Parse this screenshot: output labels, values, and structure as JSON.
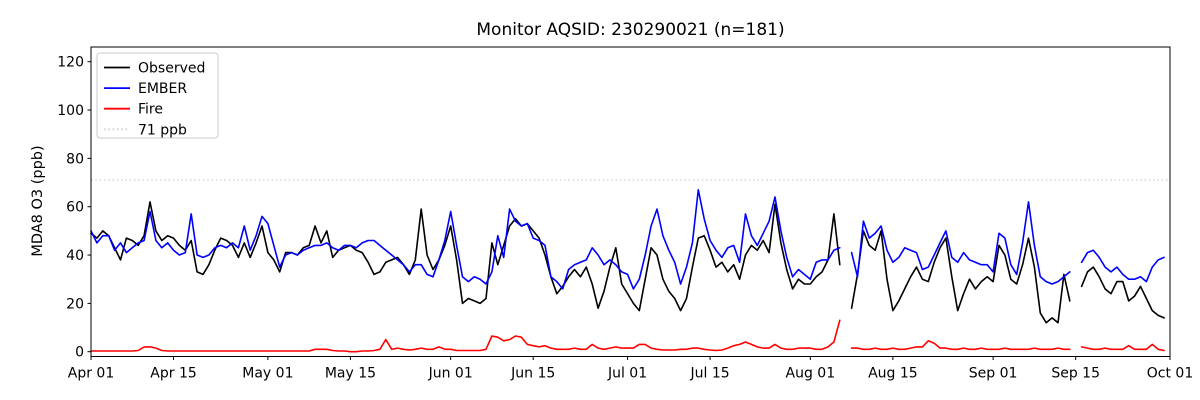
{
  "figure": {
    "title": "Monitor AQSID: 230290021 (n=181)"
  },
  "chart_data": {
    "type": "line",
    "title": "Monitor AQSID: 230290021 (n=181)",
    "monitor_aqsid": "230290021",
    "n": 181,
    "xlabel": "",
    "ylabel": "MDA8 O3 (ppb)",
    "ylim": [
      -2,
      126
    ],
    "yticks": [
      0,
      20,
      40,
      60,
      80,
      100,
      120
    ],
    "x_unit": "days since Apr 01",
    "xticks": {
      "positions": [
        0,
        14,
        30,
        44,
        61,
        75,
        91,
        105,
        122,
        136,
        153,
        167,
        183
      ],
      "labels": [
        "Apr 01",
        "Apr 15",
        "May 01",
        "May 15",
        "Jun 01",
        "Jun 15",
        "Jul 01",
        "Jul 15",
        "Aug 01",
        "Aug 15",
        "Sep 01",
        "Sep 15",
        "Oct 01"
      ]
    },
    "grid": false,
    "threshold": {
      "value": 71,
      "label": "71 ppb",
      "color": "#d0d0d0",
      "style": "dotted"
    },
    "legend": {
      "position": "upper left",
      "entries": [
        "Observed",
        "EMBER",
        "Fire",
        "71 ppb"
      ]
    },
    "missing_days": [
      "Aug 07",
      "Sep 15"
    ],
    "series": [
      {
        "name": "Observed",
        "color": "#000000",
        "values": [
          49,
          47,
          50,
          48,
          43,
          38,
          47,
          46,
          44,
          48,
          62,
          50,
          46,
          48,
          47,
          44,
          42,
          46,
          33,
          32,
          36,
          42,
          47,
          46,
          44,
          39,
          45,
          39,
          45,
          52,
          41,
          38,
          33,
          41,
          41,
          40,
          43,
          44,
          52,
          45,
          50,
          39,
          42,
          43,
          44,
          42,
          41,
          37,
          32,
          33,
          37,
          38,
          39,
          36,
          32,
          38,
          59,
          40,
          34,
          38,
          44,
          52,
          38,
          20,
          22,
          21,
          20,
          22,
          45,
          36,
          44,
          52,
          55,
          52,
          53,
          50,
          47,
          40,
          31,
          24,
          27,
          31,
          34,
          31,
          35,
          28,
          18,
          25,
          35,
          43,
          28,
          24,
          20,
          17,
          30,
          43,
          40,
          30,
          25,
          22,
          17,
          22,
          35,
          47,
          48,
          42,
          35,
          37,
          33,
          36,
          30,
          40,
          44,
          42,
          46,
          41,
          61,
          45,
          34,
          26,
          30,
          28,
          28,
          31,
          33,
          38,
          57,
          36,
          null,
          18,
          32,
          50,
          44,
          42,
          50,
          30,
          17,
          21,
          26,
          31,
          35,
          30,
          29,
          37,
          43,
          47,
          31,
          17,
          24,
          30,
          26,
          29,
          31,
          29,
          44,
          40,
          30,
          28,
          36,
          47,
          35,
          16,
          12,
          14,
          12,
          32,
          21,
          null,
          27,
          33,
          35,
          31,
          26,
          24,
          29,
          29,
          21,
          23,
          27,
          22,
          17,
          15,
          14
        ]
      },
      {
        "name": "EMBER",
        "color": "#0000ff",
        "values": [
          50,
          45,
          48,
          48,
          42,
          45,
          41,
          43,
          45,
          46,
          58,
          46,
          43,
          45,
          42,
          40,
          41,
          57,
          40,
          39,
          40,
          43,
          44,
          43,
          45,
          43,
          52,
          42,
          48,
          56,
          53,
          44,
          35,
          40,
          41,
          40,
          42,
          43,
          44,
          44,
          45,
          43,
          42,
          44,
          44,
          43,
          45,
          46,
          46,
          44,
          42,
          40,
          38,
          36,
          33,
          36,
          36,
          32,
          31,
          38,
          46,
          58,
          44,
          31,
          29,
          31,
          30,
          28,
          33,
          48,
          39,
          59,
          54,
          52,
          53,
          47,
          46,
          44,
          31,
          29,
          26,
          34,
          36,
          37,
          38,
          43,
          40,
          36,
          38,
          36,
          33,
          32,
          26,
          30,
          40,
          52,
          59,
          48,
          42,
          37,
          28,
          35,
          45,
          67,
          55,
          46,
          42,
          39,
          43,
          44,
          37,
          57,
          48,
          44,
          49,
          54,
          64,
          50,
          39,
          31,
          34,
          32,
          30,
          37,
          38,
          38,
          42,
          43,
          null,
          41,
          31,
          54,
          47,
          49,
          52,
          42,
          37,
          39,
          43,
          42,
          41,
          34,
          35,
          40,
          45,
          50,
          39,
          37,
          41,
          38,
          37,
          36,
          36,
          33,
          49,
          47,
          36,
          32,
          45,
          62,
          44,
          31,
          29,
          28,
          29,
          31,
          33,
          null,
          37,
          41,
          42,
          39,
          35,
          33,
          35,
          32,
          30,
          30,
          31,
          29,
          35,
          38,
          39
        ]
      },
      {
        "name": "Fire",
        "color": "#ff0000",
        "values": [
          0.3,
          0.3,
          0.3,
          0.3,
          0.3,
          0.3,
          0.3,
          0.3,
          0.5,
          2,
          2,
          1.5,
          0.5,
          0.3,
          0.3,
          0.3,
          0.3,
          0.3,
          0.3,
          0.3,
          0.3,
          0.3,
          0.3,
          0.3,
          0.3,
          0.3,
          0.3,
          0.3,
          0.3,
          0.3,
          0.3,
          0.3,
          0.3,
          0.3,
          0.3,
          0.3,
          0.3,
          0.3,
          1,
          1,
          1,
          0.5,
          0.3,
          0.3,
          0,
          0,
          0.3,
          0.3,
          0.5,
          1,
          5,
          1,
          1.5,
          1,
          0.7,
          1,
          1.5,
          1,
          1,
          2,
          1,
          1,
          0.5,
          0.5,
          0.5,
          0.5,
          0.5,
          1,
          6.5,
          6,
          4.5,
          5,
          6.5,
          6,
          3,
          2.5,
          2,
          2.5,
          1.5,
          1,
          1,
          1,
          1.5,
          1,
          1,
          3,
          1.5,
          1,
          1.5,
          2,
          1.5,
          1.5,
          1.5,
          3,
          3,
          1.5,
          1,
          0.7,
          0.7,
          0.7,
          1,
          1,
          1.5,
          1.5,
          1,
          0.7,
          0.5,
          0.7,
          1.5,
          2.5,
          3,
          4,
          3,
          2,
          1.5,
          1.5,
          3,
          1.5,
          1,
          1,
          1.5,
          1.5,
          1.5,
          1,
          1,
          2,
          4,
          13,
          null,
          1.5,
          1.5,
          1,
          1,
          1.5,
          1,
          1,
          1.5,
          1,
          1,
          1.5,
          2,
          2,
          4.5,
          3.5,
          1.5,
          1.5,
          1,
          1,
          1.5,
          1,
          1,
          1.5,
          1,
          1,
          1,
          1.5,
          1,
          1,
          1,
          1,
          1.5,
          1,
          1,
          1,
          1.5,
          1,
          1,
          null,
          2,
          1.5,
          1,
          1,
          1.5,
          1,
          1,
          1,
          2.5,
          1,
          1,
          1,
          3,
          1,
          0.5
        ]
      }
    ]
  }
}
